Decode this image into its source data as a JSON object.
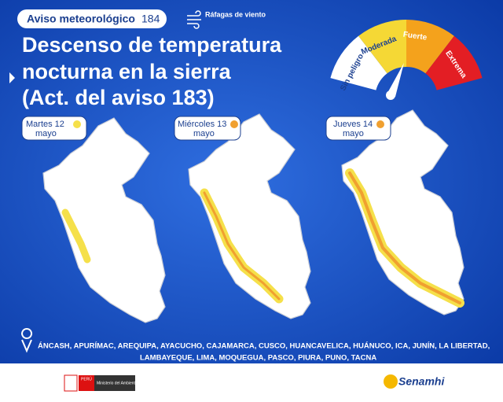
{
  "header": {
    "badge": "Aviso meteorológico",
    "number": "184",
    "wind_legend": "Ráfagas de viento"
  },
  "title": {
    "line1": "Descenso de temperatura",
    "line2": "nocturna en la sierra",
    "line3": "(Act. del aviso 183)"
  },
  "gauge": {
    "levels": [
      "Sin peligro",
      "Moderada",
      "Fuerte",
      "Extrema"
    ]
  },
  "panels": [
    {
      "day": "Martes 12",
      "month": "mayo"
    },
    {
      "day": "Miércoles 13",
      "month": "mayo"
    },
    {
      "day": "Jueves 14",
      "month": "mayo"
    }
  ],
  "regions": {
    "line1": "ÁNCASH, APURÍMAC, AREQUIPA, AYACUCHO, CAJAMARCA, CUSCO, HUANCAVELICA, HUÁNUCO, ICA, JUNÍN, LA LIBERTAD,",
    "line2": "LAMBAYEQUE, LIMA, MOQUEGUA, PASCO, PIURA, PUNO, TACNA"
  },
  "footer": {
    "country": "PERÚ",
    "ministry": "Ministerio del Ambiente",
    "agency": "Senamhi"
  }
}
